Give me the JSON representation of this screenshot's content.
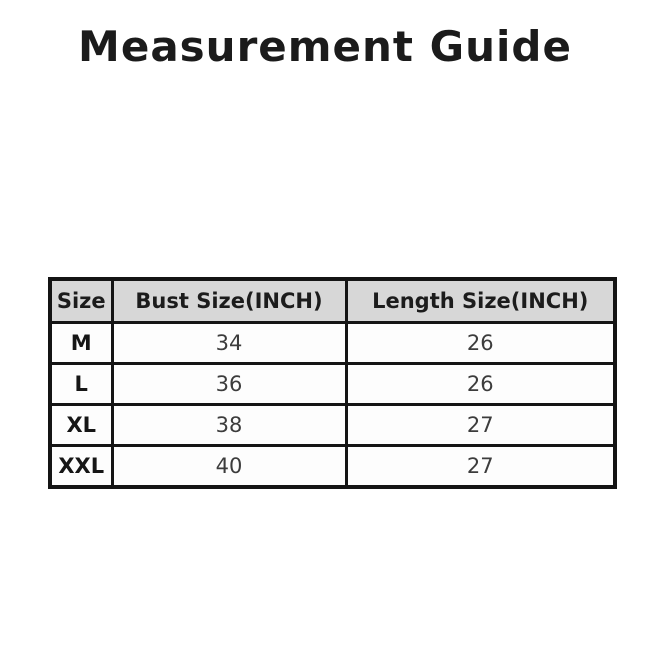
{
  "page": {
    "title": "Measurement Guide"
  },
  "table": {
    "columns": [
      "Size",
      "Bust Size(INCH)",
      "Length Size(INCH)"
    ],
    "rows": [
      {
        "size": "M",
        "bust": "34",
        "length": "26"
      },
      {
        "size": "L",
        "bust": "36",
        "length": "26"
      },
      {
        "size": "XL",
        "bust": "38",
        "length": "27"
      },
      {
        "size": "XXL",
        "bust": "40",
        "length": "27"
      }
    ]
  },
  "colors": {
    "background": "#ffffff",
    "title_text": "#1b1b1b",
    "table_border": "#141414",
    "header_background": "#d7d7d7",
    "cell_text": "#3c3c3c"
  }
}
